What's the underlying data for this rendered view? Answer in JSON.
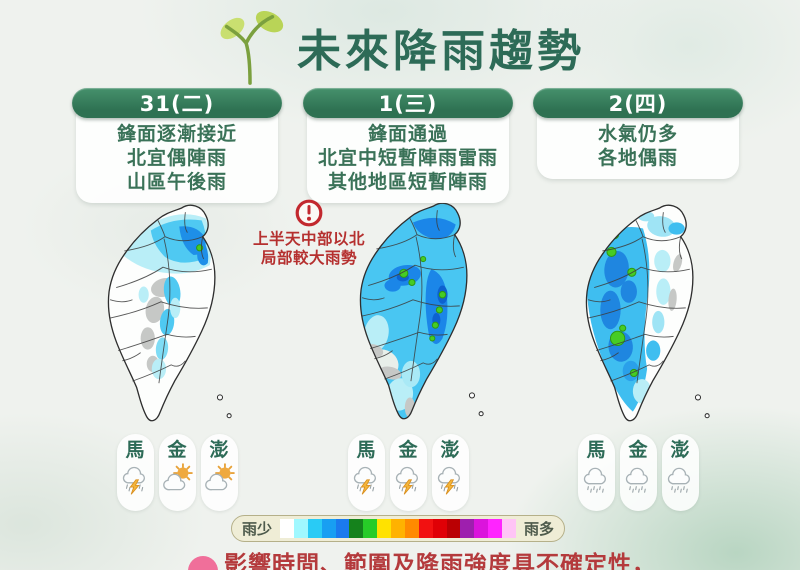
{
  "title": "未來降雨趨勢",
  "warning": {
    "lines": [
      "上半天中部以北",
      "局部較大雨勢"
    ]
  },
  "columns": [
    {
      "date": "31(二)",
      "desc_lines": [
        "鋒面逐漸接近",
        "北宜偶陣雨",
        "山區午後雨"
      ],
      "islands": [
        {
          "label": "馬",
          "icon": "thunderstorm"
        },
        {
          "label": "金",
          "icon": "partly-cloudy"
        },
        {
          "label": "澎",
          "icon": "partly-cloudy"
        }
      ]
    },
    {
      "date": "1(三)",
      "desc_lines": [
        "鋒面通過",
        "北宜中短暫陣雨雷雨",
        "其他地區短暫陣雨"
      ],
      "islands": [
        {
          "label": "馬",
          "icon": "thunderstorm"
        },
        {
          "label": "金",
          "icon": "thunderstorm"
        },
        {
          "label": "澎",
          "icon": "thunderstorm"
        }
      ]
    },
    {
      "date": "2(四)",
      "desc_lines": [
        "水氣仍多",
        "各地偶雨"
      ],
      "islands": [
        {
          "label": "馬",
          "icon": "rain"
        },
        {
          "label": "金",
          "icon": "rain"
        },
        {
          "label": "澎",
          "icon": "rain"
        }
      ]
    }
  ],
  "legend": {
    "left_label": "雨少",
    "right_label": "雨多",
    "colors": [
      "#FFFFFF",
      "#A0F8FF",
      "#29CBF5",
      "#189FF2",
      "#1B7AEE",
      "#15821C",
      "#27CC28",
      "#FFE200",
      "#FFB200",
      "#FF8A00",
      "#F21111",
      "#E00006",
      "#BA0003",
      "#9E1FAE",
      "#DB14DC",
      "#FF24FF",
      "#FFC4F6"
    ]
  },
  "footer": {
    "text": "影響時間、範圍及降雨強度具不確定性，"
  },
  "theme": {
    "title_green": "#2D6B57",
    "header_green": "#2E7152",
    "desc_green": "#3A7258",
    "warning_red": "#B5302F",
    "footer_red": "#B43A3C"
  }
}
